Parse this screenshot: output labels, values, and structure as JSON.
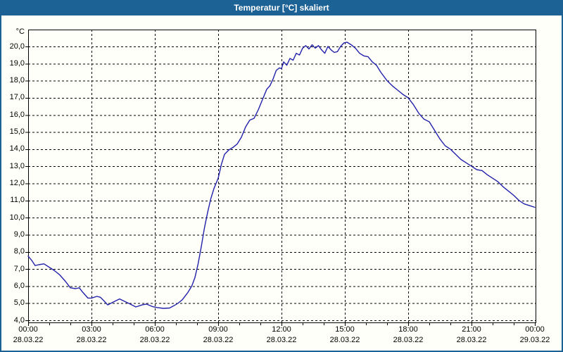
{
  "window": {
    "title": "Temperatur [°C] skaliert"
  },
  "colors": {
    "titlebar_bg": "#1d6295",
    "titlebar_text": "#ffffff",
    "window_border": "#1d6295",
    "background": "#fffffa",
    "line": "#2121aa",
    "grid": "#000000",
    "text": "#000000"
  },
  "chart_data": {
    "type": "line",
    "title": "Temperatur [°C] skaliert",
    "ylabel": "°C",
    "xlabel": "",
    "xlim_hours": [
      0,
      24.07
    ],
    "ylim": [
      3.8,
      21.0
    ],
    "grid": "dashed, both axes, black",
    "legend_position": "none",
    "y_ticks": {
      "values": [
        20,
        19,
        18,
        17,
        16,
        15,
        14,
        13,
        12,
        11,
        10,
        9,
        8,
        7,
        6,
        5,
        4
      ],
      "labels": [
        "20,0",
        "19,0",
        "18,0",
        "17,0",
        "16,0",
        "15,0",
        "14,0",
        "13,0",
        "12,0",
        "11,0",
        "10,0",
        "9,0",
        "8,0",
        "7,0",
        "6,0",
        "5,0",
        "4,0"
      ]
    },
    "x_ticks": [
      {
        "hour": 0,
        "time": "00:00",
        "date": "28.03.22"
      },
      {
        "hour": 3,
        "time": "03:00",
        "date": "28.03.22"
      },
      {
        "hour": 6,
        "time": "06:00",
        "date": "28.03.22"
      },
      {
        "hour": 9,
        "time": "09:00",
        "date": "28.03.22"
      },
      {
        "hour": 12,
        "time": "12:00",
        "date": "28.03.22"
      },
      {
        "hour": 15,
        "time": "15:00",
        "date": "28.03.22"
      },
      {
        "hour": 18,
        "time": "18:00",
        "date": "28.03.22"
      },
      {
        "hour": 21,
        "time": "21:00",
        "date": "28.03.22"
      },
      {
        "hour": 24,
        "time": "00:00",
        "date": "29.03.22"
      }
    ],
    "minor_x_tick_every_hours": 1,
    "series": [
      {
        "name": "Temperatur",
        "unit": "°C",
        "x_hours": [
          0,
          0.17,
          0.33,
          0.5,
          0.75,
          1,
          1.25,
          1.5,
          1.75,
          2,
          2.25,
          2.42,
          2.58,
          2.83,
          3,
          3.25,
          3.42,
          3.58,
          3.77,
          4,
          4.17,
          4.33,
          4.58,
          4.83,
          5.1,
          5.4,
          5.6,
          5.9,
          6.1,
          6.4,
          6.7,
          6.9,
          7.1,
          7.3,
          7.55,
          7.75,
          7.9,
          8.05,
          8.2,
          8.35,
          8.5,
          8.65,
          8.8,
          9,
          9.15,
          9.3,
          9.5,
          9.7,
          9.9,
          10.1,
          10.3,
          10.5,
          10.7,
          10.9,
          11.1,
          11.3,
          11.45,
          11.6,
          11.75,
          11.9,
          12,
          12.1,
          12.25,
          12.4,
          12.55,
          12.7,
          12.85,
          13,
          13.15,
          13.3,
          13.45,
          13.6,
          13.75,
          13.9,
          14.05,
          14.2,
          14.35,
          14.5,
          14.65,
          14.8,
          14.95,
          15.1,
          15.3,
          15.5,
          15.7,
          15.9,
          16.1,
          16.3,
          16.5,
          16.7,
          17,
          17.25,
          17.5,
          17.75,
          18,
          18.25,
          18.5,
          18.75,
          19,
          19.25,
          19.5,
          19.75,
          20,
          20.25,
          20.5,
          20.75,
          21,
          21.25,
          21.5,
          21.75,
          22,
          22.25,
          22.5,
          22.75,
          23,
          23.25,
          23.5,
          23.75,
          24
        ],
        "y_celsius": [
          7.75,
          7.5,
          7.2,
          7.25,
          7.3,
          7.1,
          6.9,
          6.65,
          6.3,
          5.9,
          5.85,
          5.9,
          5.65,
          5.3,
          5.3,
          5.4,
          5.35,
          5.15,
          4.9,
          5.05,
          5.15,
          5.25,
          5.1,
          4.95,
          4.78,
          4.9,
          4.95,
          4.8,
          4.75,
          4.7,
          4.72,
          4.85,
          5,
          5.2,
          5.6,
          6,
          6.5,
          7.3,
          8.3,
          9.4,
          10.3,
          11.1,
          11.7,
          12.3,
          13.1,
          13.7,
          13.95,
          14.1,
          14.3,
          14.7,
          15.3,
          15.7,
          15.8,
          16.3,
          16.9,
          17.5,
          17.7,
          18.1,
          18.6,
          18.75,
          18.7,
          19.1,
          18.9,
          19.3,
          19.2,
          19.6,
          19.5,
          19.9,
          20.05,
          19.85,
          20.1,
          19.9,
          20.05,
          19.8,
          19.6,
          20,
          19.8,
          19.65,
          19.7,
          20,
          20.2,
          20.25,
          20.1,
          19.9,
          19.6,
          19.45,
          19.4,
          19.1,
          18.9,
          18.5,
          18,
          17.7,
          17.45,
          17.2,
          17,
          16.6,
          16.1,
          15.75,
          15.6,
          15.1,
          14.6,
          14.2,
          14,
          13.7,
          13.4,
          13.2,
          13,
          12.8,
          12.75,
          12.5,
          12.3,
          12.1,
          11.8,
          11.55,
          11.3,
          11,
          10.8,
          10.7,
          10.6
        ]
      }
    ]
  }
}
